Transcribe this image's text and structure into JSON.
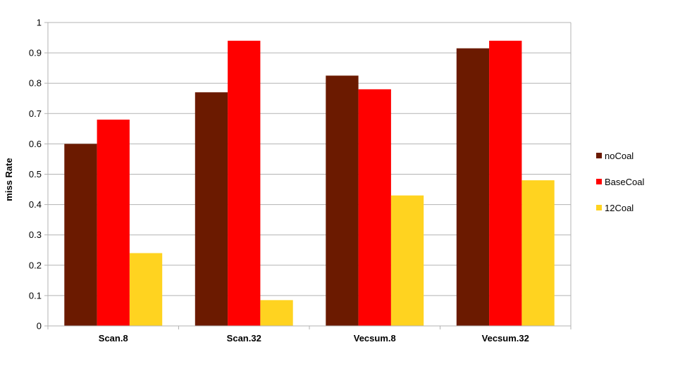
{
  "chart_data": {
    "type": "bar",
    "title": "",
    "xlabel": "",
    "ylabel": "miss Rate",
    "ylim": [
      0,
      1
    ],
    "yticks": [
      "0",
      "0.1",
      "0.2",
      "0.3",
      "0.4",
      "0.5",
      "0.6",
      "0.7",
      "0.8",
      "0.9",
      "1"
    ],
    "grid": true,
    "legend_position": "right",
    "categories": [
      "Scan.8",
      "Scan.32",
      "Vecsum.8",
      "Vecsum.32"
    ],
    "series": [
      {
        "name": "noCoal",
        "color": "#6b1a00",
        "values": [
          0.6,
          0.77,
          0.825,
          0.915
        ]
      },
      {
        "name": "BaseCoal",
        "color": "#ff0000",
        "values": [
          0.68,
          0.94,
          0.78,
          0.94
        ]
      },
      {
        "name": "12Coal",
        "color": "#ffd320",
        "values": [
          0.24,
          0.085,
          0.43,
          0.48
        ]
      }
    ]
  }
}
